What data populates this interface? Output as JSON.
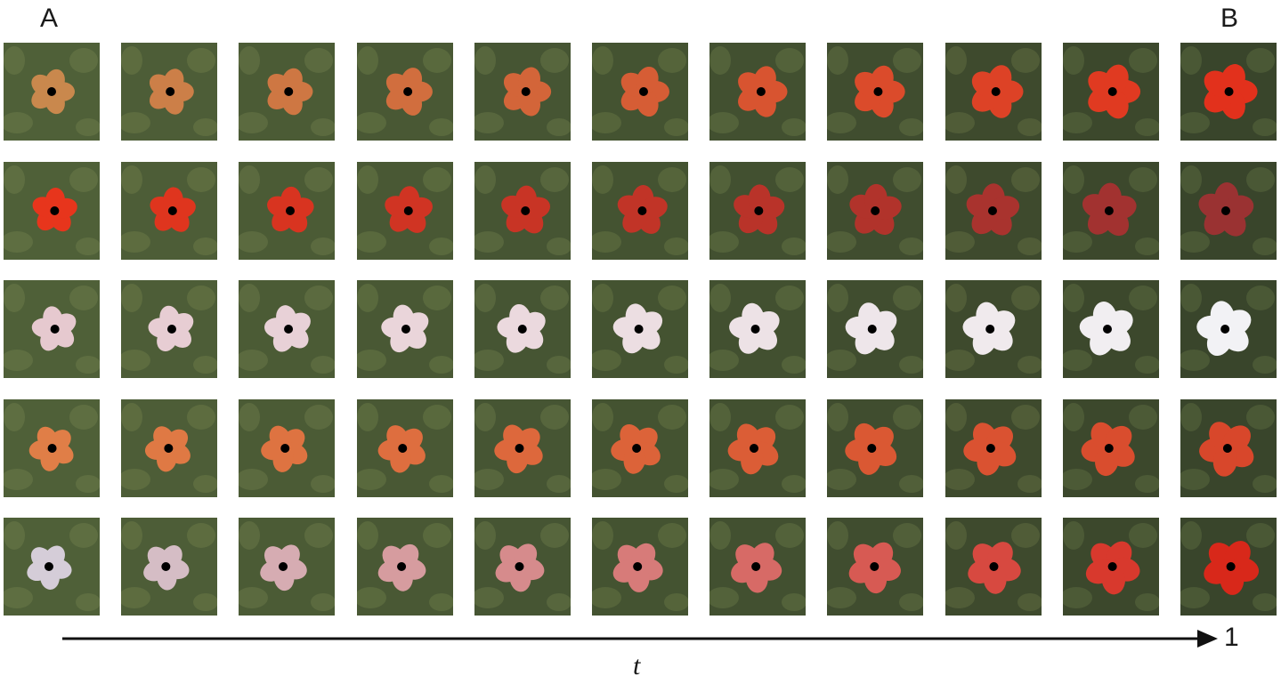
{
  "labels": {
    "start": "A",
    "end": "B",
    "axis_variable": "t",
    "axis_end": "1"
  },
  "colors": {
    "background_dark": "#2b3322",
    "background_mid": "#4f6038",
    "foliage": "#6b7a48"
  },
  "rows": [
    {
      "name": "row-orange-to-red",
      "from": "#c9884d",
      "to": "#e2311c"
    },
    {
      "name": "row-red-to-darkred",
      "from": "#e7351c",
      "to": "#9a3232"
    },
    {
      "name": "row-pinkwhite-to-white",
      "from": "#e6c9cf",
      "to": "#f2f2f5"
    },
    {
      "name": "row-orange-to-redorange",
      "from": "#e07e47",
      "to": "#d8472b"
    },
    {
      "name": "row-white-to-red",
      "from": "#d5cdd8",
      "to": "#d8281a"
    }
  ],
  "frames_per_row": 11
}
